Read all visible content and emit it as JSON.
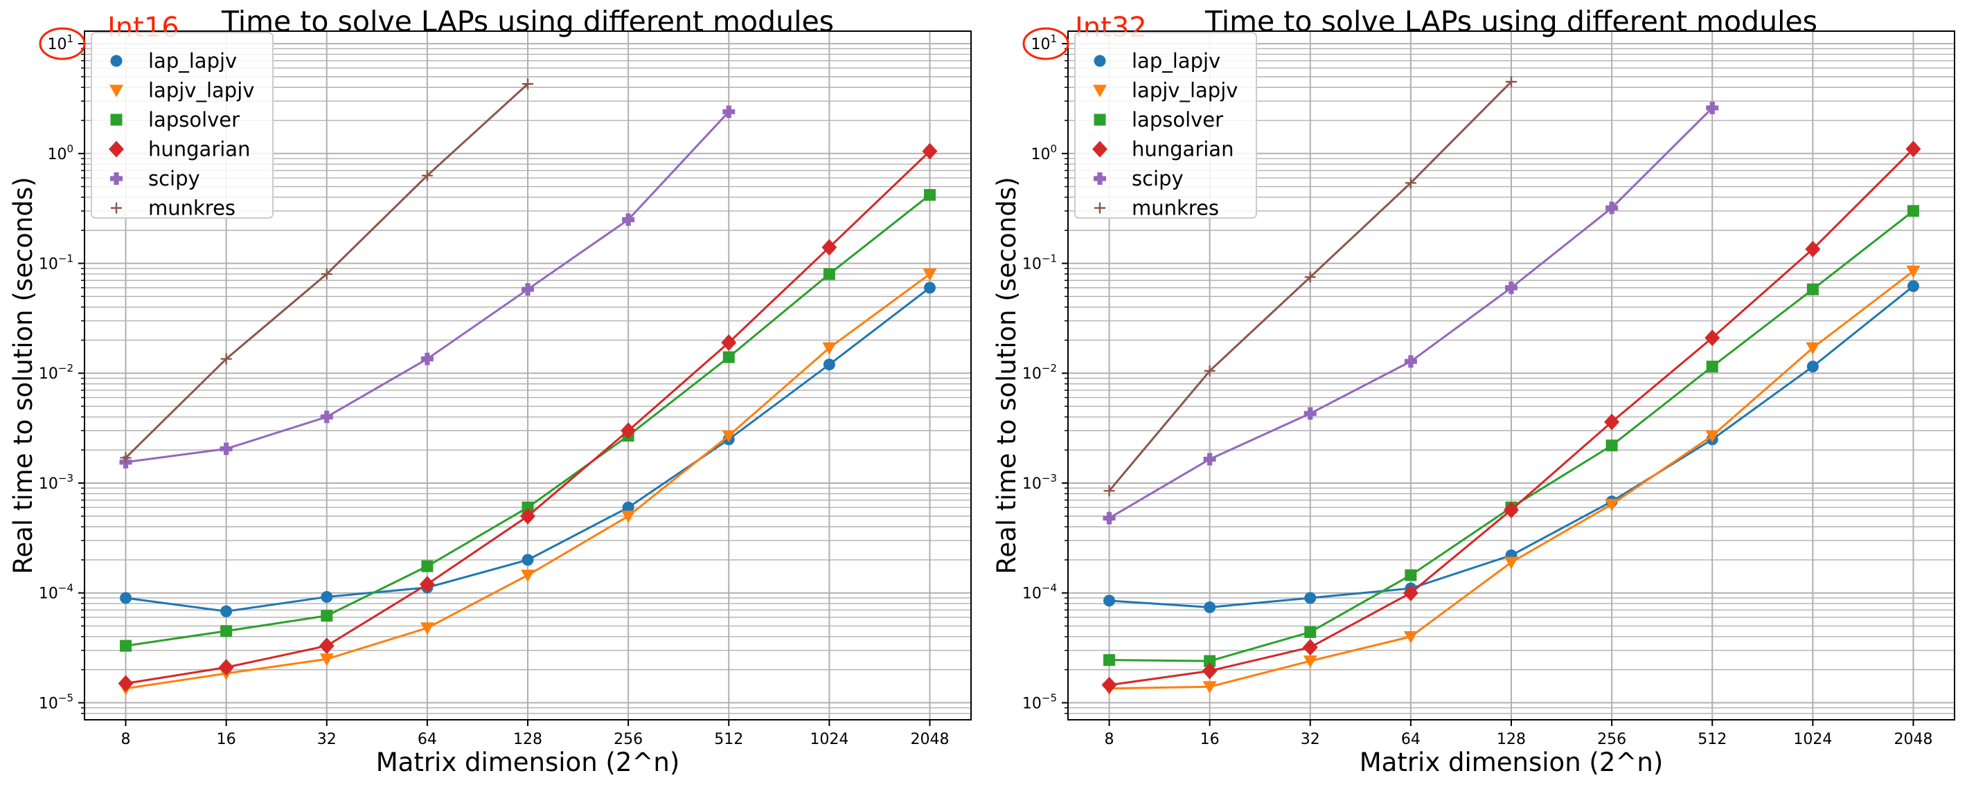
{
  "figure": {
    "colors": {
      "lap_lapjv": "#1f77b4",
      "lapjv_lapjv": "#ff7f0e",
      "lapsolver": "#2ca02c",
      "hungarian": "#d62728",
      "scipy": "#9467bd",
      "munkres": "#8c564b",
      "annotation": "#ff2200",
      "grid": "#b0b0b0"
    },
    "markers": {
      "lap_lapjv": "circle",
      "lapjv_lapjv": "triangle-down",
      "lapsolver": "square",
      "hungarian": "diamond",
      "scipy": "plus-filled",
      "munkres": "plus"
    }
  },
  "chart_data": [
    {
      "type": "line",
      "title": "Time to solve LAPs using different modules",
      "annotation": "Int16",
      "circled_tick": "10^1",
      "xlabel": "Matrix dimension (2^n)",
      "ylabel": "Real time to solution (seconds)",
      "x_scale": "log2",
      "y_scale": "log10",
      "ylim": [
        7e-06,
        13
      ],
      "x": [
        8,
        16,
        32,
        64,
        128,
        256,
        512,
        1024,
        2048
      ],
      "x_tick_labels": [
        "8",
        "16",
        "32",
        "64",
        "128",
        "256",
        "512",
        "1024",
        "2048"
      ],
      "y_tick_labels": [
        {
          "base": "10",
          "exp": "−5",
          "value": 1e-05
        },
        {
          "base": "10",
          "exp": "−4",
          "value": 0.0001
        },
        {
          "base": "10",
          "exp": "−3",
          "value": 0.001
        },
        {
          "base": "10",
          "exp": "−2",
          "value": 0.01
        },
        {
          "base": "10",
          "exp": "−1",
          "value": 0.1
        },
        {
          "base": "10",
          "exp": "0",
          "value": 1
        },
        {
          "base": "10",
          "exp": "1",
          "value": 10
        }
      ],
      "grid": true,
      "legend_position": "top-left",
      "series": [
        {
          "name": "lap_lapjv",
          "values": [
            9e-05,
            6.8e-05,
            9.2e-05,
            0.000112,
            0.0002,
            0.0006,
            0.0025,
            0.012,
            0.06
          ]
        },
        {
          "name": "lapjv_lapjv",
          "values": [
            1.35e-05,
            1.85e-05,
            2.5e-05,
            4.8e-05,
            0.000145,
            0.0005,
            0.0027,
            0.017,
            0.08
          ]
        },
        {
          "name": "lapsolver",
          "values": [
            3.3e-05,
            4.5e-05,
            6.2e-05,
            0.000175,
            0.0006,
            0.0027,
            0.014,
            0.08,
            0.42
          ]
        },
        {
          "name": "hungarian",
          "values": [
            1.5e-05,
            2.1e-05,
            3.3e-05,
            0.00012,
            0.0005,
            0.003,
            0.019,
            0.14,
            1.05
          ]
        },
        {
          "name": "scipy",
          "values": [
            0.00155,
            0.00205,
            0.004,
            0.0135,
            0.058,
            0.25,
            2.4,
            null,
            null
          ]
        },
        {
          "name": "munkres",
          "values": [
            0.0017,
            0.0135,
            0.08,
            0.63,
            4.3,
            null,
            null,
            null,
            null
          ]
        }
      ]
    },
    {
      "type": "line",
      "title": "Time to solve LAPs using different modules",
      "annotation": "Int32",
      "circled_tick": "10^1",
      "xlabel": "Matrix dimension (2^n)",
      "ylabel": "Real time to solution (seconds)",
      "x_scale": "log2",
      "y_scale": "log10",
      "ylim": [
        7e-06,
        13
      ],
      "x": [
        8,
        16,
        32,
        64,
        128,
        256,
        512,
        1024,
        2048
      ],
      "x_tick_labels": [
        "8",
        "16",
        "32",
        "64",
        "128",
        "256",
        "512",
        "1024",
        "2048"
      ],
      "y_tick_labels": [
        {
          "base": "10",
          "exp": "−5",
          "value": 1e-05
        },
        {
          "base": "10",
          "exp": "−4",
          "value": 0.0001
        },
        {
          "base": "10",
          "exp": "−3",
          "value": 0.001
        },
        {
          "base": "10",
          "exp": "−2",
          "value": 0.01
        },
        {
          "base": "10",
          "exp": "−1",
          "value": 0.1
        },
        {
          "base": "10",
          "exp": "0",
          "value": 1
        },
        {
          "base": "10",
          "exp": "1",
          "value": 10
        }
      ],
      "grid": true,
      "legend_position": "top-left",
      "series": [
        {
          "name": "lap_lapjv",
          "values": [
            8.5e-05,
            7.4e-05,
            9e-05,
            0.00011,
            0.00022,
            0.00068,
            0.0025,
            0.0115,
            0.062
          ]
        },
        {
          "name": "lapjv_lapjv",
          "values": [
            1.35e-05,
            1.4e-05,
            2.4e-05,
            4e-05,
            0.00019,
            0.00064,
            0.0027,
            0.017,
            0.085
          ]
        },
        {
          "name": "lapsolver",
          "values": [
            2.45e-05,
            2.4e-05,
            4.4e-05,
            0.000145,
            0.0006,
            0.0022,
            0.0115,
            0.058,
            0.3
          ]
        },
        {
          "name": "hungarian",
          "values": [
            1.45e-05,
            1.95e-05,
            3.2e-05,
            0.0001,
            0.00057,
            0.0036,
            0.021,
            0.135,
            1.1
          ]
        },
        {
          "name": "scipy",
          "values": [
            0.00048,
            0.00165,
            0.0043,
            0.0128,
            0.06,
            0.32,
            2.6,
            null,
            null
          ]
        },
        {
          "name": "munkres",
          "values": [
            0.00085,
            0.0105,
            0.075,
            0.54,
            4.5,
            null,
            null,
            null,
            null
          ]
        }
      ]
    }
  ]
}
